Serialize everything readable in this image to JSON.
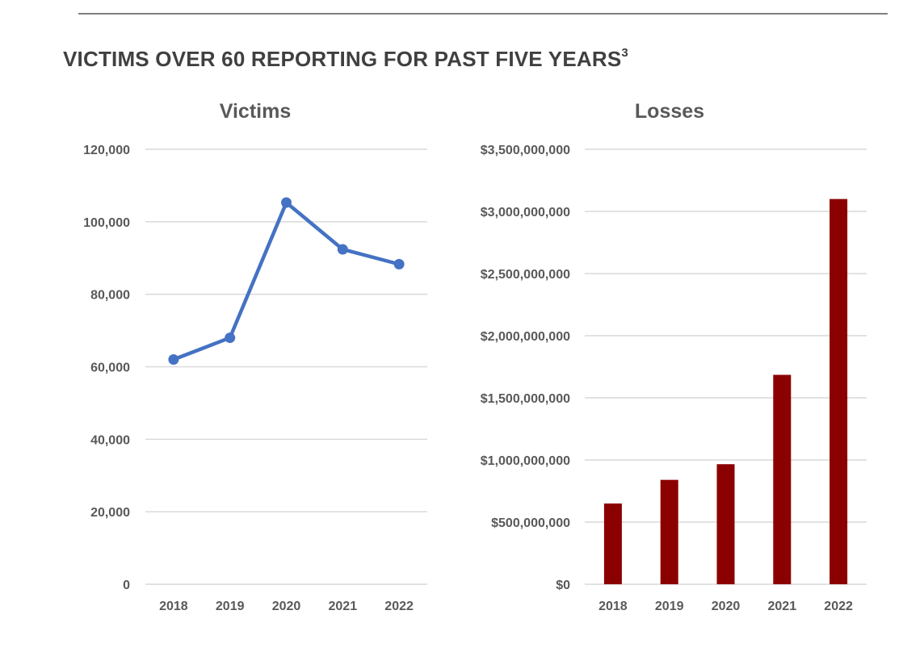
{
  "page": {
    "title": "VICTIMS OVER 60 REPORTING FOR PAST FIVE YEARS",
    "title_superscript": "3"
  },
  "colors": {
    "victims_line": "#4472c4",
    "losses_bars": "#8b0000",
    "gridlines": "#d9d9d9",
    "text": "#595959"
  },
  "chart_data": [
    {
      "type": "line",
      "title": "Victims",
      "xlabel": "",
      "ylabel": "",
      "categories": [
        "2018",
        "2019",
        "2020",
        "2021",
        "2022"
      ],
      "values": [
        62000,
        68000,
        105300,
        92400,
        88300
      ],
      "ylim": [
        0,
        120000
      ],
      "yticks": [
        0,
        20000,
        40000,
        60000,
        80000,
        100000,
        120000
      ],
      "ytick_labels": [
        "0",
        "20,000",
        "40,000",
        "60,000",
        "80,000",
        "100,000",
        "120,000"
      ],
      "grid": true,
      "legend": "none",
      "markers": true
    },
    {
      "type": "bar",
      "title": "Losses",
      "xlabel": "",
      "ylabel": "",
      "categories": [
        "2018",
        "2019",
        "2020",
        "2021",
        "2022"
      ],
      "values": [
        650000000,
        840000000,
        966000000,
        1685000000,
        3100000000
      ],
      "ylim": [
        0,
        3500000000
      ],
      "yticks": [
        0,
        500000000,
        1000000000,
        1500000000,
        2000000000,
        2500000000,
        3000000000,
        3500000000
      ],
      "ytick_labels": [
        "$0",
        "$500,000,000",
        "$1,000,000,000",
        "$1,500,000,000",
        "$2,000,000,000",
        "$2,500,000,000",
        "$3,000,000,000",
        "$3,500,000,000"
      ],
      "grid": true,
      "legend": "none"
    }
  ]
}
